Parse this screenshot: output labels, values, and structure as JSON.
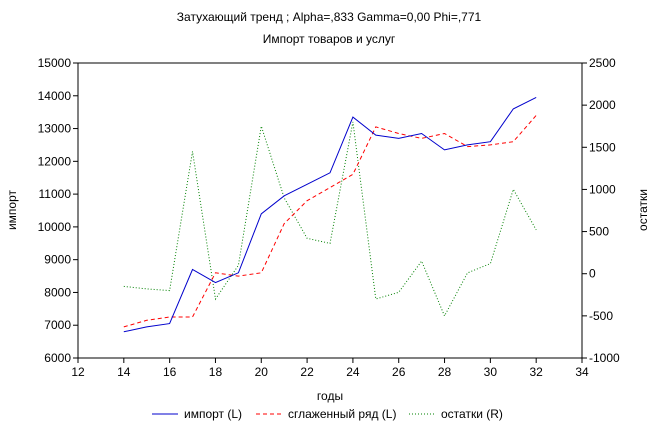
{
  "chart_data": {
    "type": "line",
    "title": "Затухающий тренд ; Alpha=,833 Gamma=0,00 Phi=,771",
    "subtitle": "Импорт товаров и услуг",
    "xlabel": "годы",
    "ylabel_left": "импорт",
    "ylabel_right": "остатки",
    "xlim": [
      12,
      34
    ],
    "x_ticks": [
      "12",
      "14",
      "16",
      "18",
      "20",
      "22",
      "24",
      "26",
      "28",
      "30",
      "32",
      "34"
    ],
    "ylim_left": [
      6000,
      15000
    ],
    "y_ticks_left": [
      "6000",
      "7000",
      "8000",
      "9000",
      "10000",
      "11000",
      "12000",
      "13000",
      "14000",
      "15000"
    ],
    "ylim_right": [
      -1000,
      2500
    ],
    "y_ticks_right": [
      "-1000",
      "-500",
      "0",
      "500",
      "1000",
      "1500",
      "2000",
      "2500"
    ],
    "grid": false,
    "legend_position": "bottom",
    "series": [
      {
        "name": "импорт (L)",
        "axis": "left",
        "color": "#0000cc",
        "style": "solid",
        "x": [
          14,
          15,
          16,
          17,
          18,
          19,
          20,
          21,
          22,
          23,
          24,
          25,
          26,
          27,
          28,
          29,
          30,
          31,
          32
        ],
        "values": [
          6800,
          6950,
          7050,
          8700,
          8300,
          8600,
          10400,
          10950,
          11300,
          11650,
          13350,
          12800,
          12700,
          12850,
          12350,
          12500,
          12600,
          13600,
          13950
        ]
      },
      {
        "name": "сглаженный ряд (L)",
        "axis": "left",
        "color": "#ff0000",
        "style": "dashed",
        "x": [
          14,
          15,
          16,
          17,
          18,
          19,
          20,
          21,
          22,
          23,
          24,
          25,
          26,
          27,
          28,
          29,
          30,
          31,
          32
        ],
        "values": [
          6950,
          7150,
          7250,
          7250,
          8600,
          8500,
          8600,
          10100,
          10800,
          11200,
          11600,
          13050,
          12850,
          12700,
          12850,
          12450,
          12500,
          12600,
          13400
        ]
      },
      {
        "name": "остатки (R)",
        "axis": "right",
        "color": "#008000",
        "style": "dotted",
        "x": [
          14,
          15,
          16,
          17,
          18,
          19,
          20,
          21,
          22,
          23,
          24,
          25,
          26,
          27,
          28,
          29,
          30,
          31,
          32
        ],
        "values": [
          -150,
          -180,
          -200,
          1450,
          -300,
          100,
          1750,
          900,
          420,
          360,
          1800,
          -300,
          -220,
          150,
          -500,
          10,
          120,
          1000,
          520
        ]
      }
    ]
  }
}
